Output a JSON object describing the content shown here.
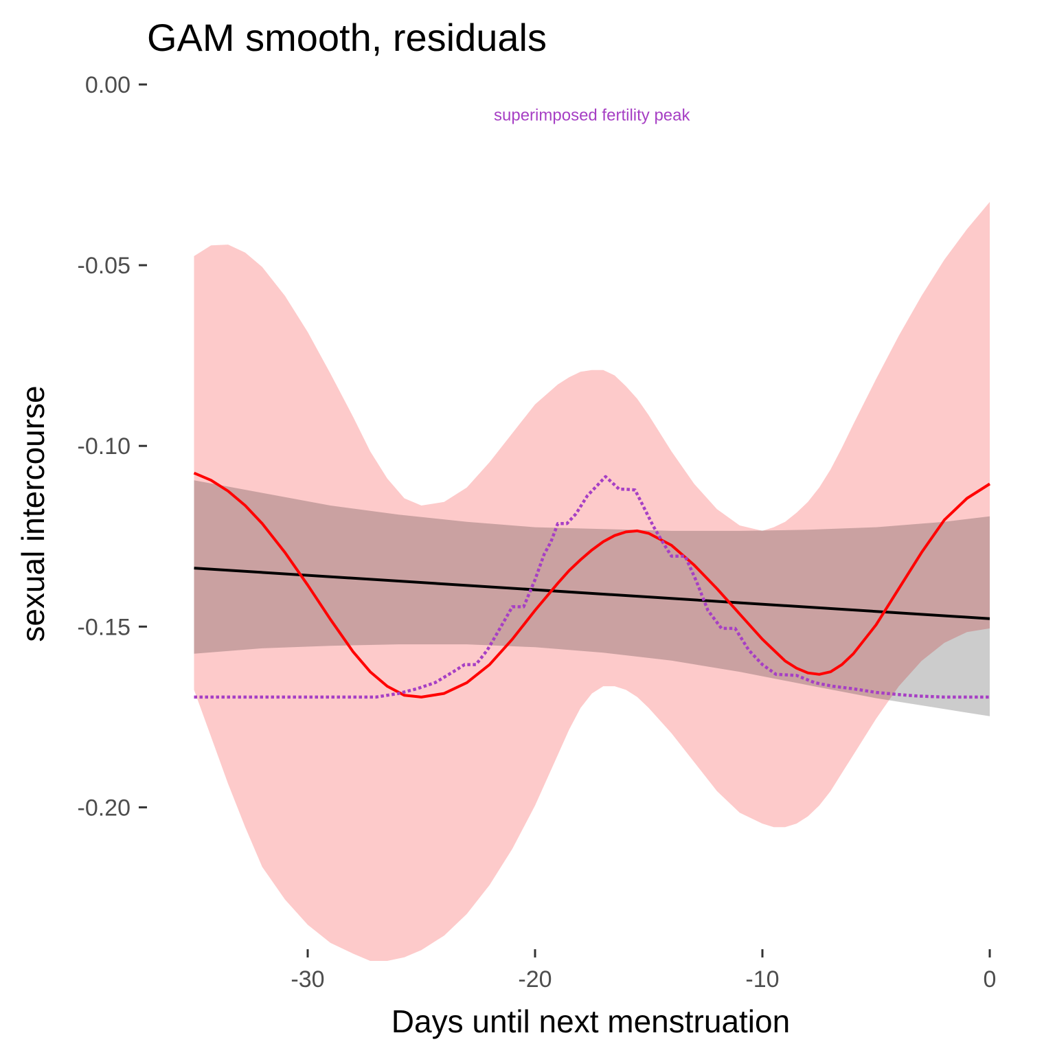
{
  "chart_data": {
    "type": "line",
    "title": "GAM smooth, residuals",
    "xlabel": "Days until next menstruation",
    "ylabel": "sexual intercourse",
    "xlim": [
      -35.5,
      0.3
    ],
    "ylim": [
      -0.238,
      0.0
    ],
    "x_ticks": [
      -30,
      -20,
      -10,
      0
    ],
    "x_tick_labels": [
      "-30",
      "-20",
      "-10",
      "0"
    ],
    "y_ticks": [
      0.0,
      -0.05,
      -0.1,
      -0.15,
      -0.2
    ],
    "y_tick_labels": [
      "0.00",
      "-0.05",
      "-0.10",
      "-0.15",
      "-0.20"
    ],
    "grid": false,
    "legend": "none",
    "annotations": [
      {
        "text": "superimposed fertility peak",
        "x": -17.5,
        "y": -0.0085,
        "color": "#a63fc4"
      }
    ],
    "series": [
      {
        "kind": "ribbon",
        "color": "#fdcaca",
        "x": [
          -35,
          -34.25,
          -33.5,
          -32.75,
          -32,
          -31,
          -30,
          -29,
          -28,
          -27.25,
          -26.5,
          -25.75,
          -25,
          -24,
          -23,
          -22,
          -21,
          -20,
          -19,
          -18.5,
          -18,
          -17.5,
          -17,
          -16.5,
          -16,
          -15.5,
          -15,
          -14,
          -13,
          -12,
          -11,
          -10,
          -9.5,
          -9,
          -8.5,
          -8,
          -7.5,
          -7,
          -6.5,
          -6,
          -5,
          -4,
          -3,
          -2,
          -1,
          0
        ],
        "upper": [
          -0.0475,
          -0.0445,
          -0.0443,
          -0.0465,
          -0.0505,
          -0.0585,
          -0.0685,
          -0.08,
          -0.092,
          -0.1015,
          -0.109,
          -0.1145,
          -0.1165,
          -0.1155,
          -0.1115,
          -0.1045,
          -0.0965,
          -0.0885,
          -0.083,
          -0.081,
          -0.0795,
          -0.079,
          -0.079,
          -0.0805,
          -0.0835,
          -0.087,
          -0.0915,
          -0.1015,
          -0.1105,
          -0.1175,
          -0.122,
          -0.1235,
          -0.1225,
          -0.121,
          -0.1185,
          -0.1155,
          -0.1115,
          -0.1065,
          -0.1005,
          -0.094,
          -0.0815,
          -0.0695,
          -0.0585,
          -0.0485,
          -0.04,
          -0.0325
        ],
        "lower": [
          -0.1675,
          -0.1805,
          -0.1935,
          -0.2055,
          -0.2165,
          -0.2255,
          -0.2325,
          -0.2375,
          -0.2405,
          -0.2425,
          -0.2425,
          -0.2415,
          -0.2395,
          -0.2355,
          -0.2295,
          -0.2215,
          -0.2115,
          -0.1995,
          -0.1855,
          -0.1785,
          -0.1725,
          -0.1685,
          -0.1665,
          -0.1665,
          -0.1675,
          -0.1695,
          -0.1725,
          -0.1795,
          -0.1875,
          -0.1955,
          -0.2015,
          -0.2045,
          -0.2055,
          -0.2055,
          -0.2045,
          -0.2025,
          -0.1995,
          -0.1955,
          -0.1905,
          -0.1855,
          -0.1755,
          -0.1665,
          -0.1595,
          -0.1545,
          -0.1515,
          -0.1505
        ]
      },
      {
        "kind": "ribbon",
        "color": "#000000",
        "opacity": 0.2,
        "x": [
          -35,
          -32,
          -29,
          -26,
          -23,
          -20,
          -17,
          -14,
          -11,
          -8,
          -5,
          -2,
          0
        ],
        "upper": [
          -0.1095,
          -0.113,
          -0.1165,
          -0.119,
          -0.121,
          -0.1225,
          -0.123,
          -0.1235,
          -0.1235,
          -0.1232,
          -0.1225,
          -0.121,
          -0.1195
        ],
        "lower": [
          -0.1575,
          -0.156,
          -0.1553,
          -0.1549,
          -0.1549,
          -0.1557,
          -0.1572,
          -0.1594,
          -0.1625,
          -0.1662,
          -0.1698,
          -0.1728,
          -0.1748
        ]
      },
      {
        "kind": "line",
        "color": "#000000",
        "x": [
          -35,
          0
        ],
        "y": [
          -0.1338,
          -0.1478
        ]
      },
      {
        "kind": "line",
        "color": "#ff0000",
        "x": [
          -35,
          -34.25,
          -33.5,
          -32.75,
          -32,
          -31,
          -30,
          -29,
          -28,
          -27.25,
          -26.5,
          -25.75,
          -25,
          -24,
          -23,
          -22,
          -21,
          -20,
          -19,
          -18.5,
          -18,
          -17.5,
          -17,
          -16.5,
          -16,
          -15.5,
          -15,
          -14,
          -13,
          -12,
          -11,
          -10,
          -9.5,
          -9,
          -8.5,
          -8,
          -7.5,
          -7,
          -6.5,
          -6,
          -5,
          -4,
          -3,
          -2,
          -1,
          0
        ],
        "y": [
          -0.1075,
          -0.1095,
          -0.1125,
          -0.1165,
          -0.1215,
          -0.1295,
          -0.1385,
          -0.148,
          -0.157,
          -0.1625,
          -0.1665,
          -0.169,
          -0.1695,
          -0.1685,
          -0.1655,
          -0.1605,
          -0.1535,
          -0.1455,
          -0.138,
          -0.1345,
          -0.1315,
          -0.1288,
          -0.1265,
          -0.1248,
          -0.1238,
          -0.1235,
          -0.1242,
          -0.1275,
          -0.133,
          -0.1395,
          -0.1465,
          -0.1535,
          -0.1565,
          -0.1595,
          -0.1615,
          -0.1628,
          -0.1632,
          -0.1625,
          -0.1605,
          -0.1575,
          -0.1495,
          -0.1395,
          -0.1295,
          -0.1205,
          -0.1145,
          -0.1105
        ]
      },
      {
        "kind": "line",
        "style": "dotted",
        "color": "#a63fc4",
        "x": [
          -35,
          -27,
          -26,
          -25.2,
          -24.4,
          -23.6,
          -23.1,
          -22.6,
          -22.1,
          -21.5,
          -21,
          -20.5,
          -20,
          -19.6,
          -19.3,
          -19,
          -18.6,
          -18.2,
          -17.7,
          -17.2,
          -16.9,
          -16.6,
          -16.3,
          -16,
          -15.6,
          -15.2,
          -14.8,
          -14.4,
          -14,
          -13.4,
          -12.9,
          -12.4,
          -11.8,
          -11.2,
          -10.6,
          -10,
          -9.4,
          -8.5,
          -7.7,
          -6.9,
          -6,
          -5,
          -4,
          -3.2,
          -2,
          0
        ],
        "y": [
          -0.1695,
          -0.1695,
          -0.1685,
          -0.1672,
          -0.1655,
          -0.1625,
          -0.1605,
          -0.1605,
          -0.1565,
          -0.15,
          -0.1445,
          -0.1445,
          -0.137,
          -0.13,
          -0.1265,
          -0.1215,
          -0.1215,
          -0.1188,
          -0.1138,
          -0.1105,
          -0.1085,
          -0.1102,
          -0.112,
          -0.112,
          -0.1122,
          -0.1172,
          -0.1222,
          -0.1265,
          -0.1305,
          -0.1305,
          -0.1375,
          -0.1455,
          -0.1505,
          -0.1505,
          -0.1565,
          -0.1605,
          -0.1632,
          -0.1635,
          -0.1655,
          -0.1665,
          -0.1672,
          -0.1682,
          -0.1688,
          -0.1692,
          -0.1695,
          -0.1695
        ]
      }
    ]
  }
}
